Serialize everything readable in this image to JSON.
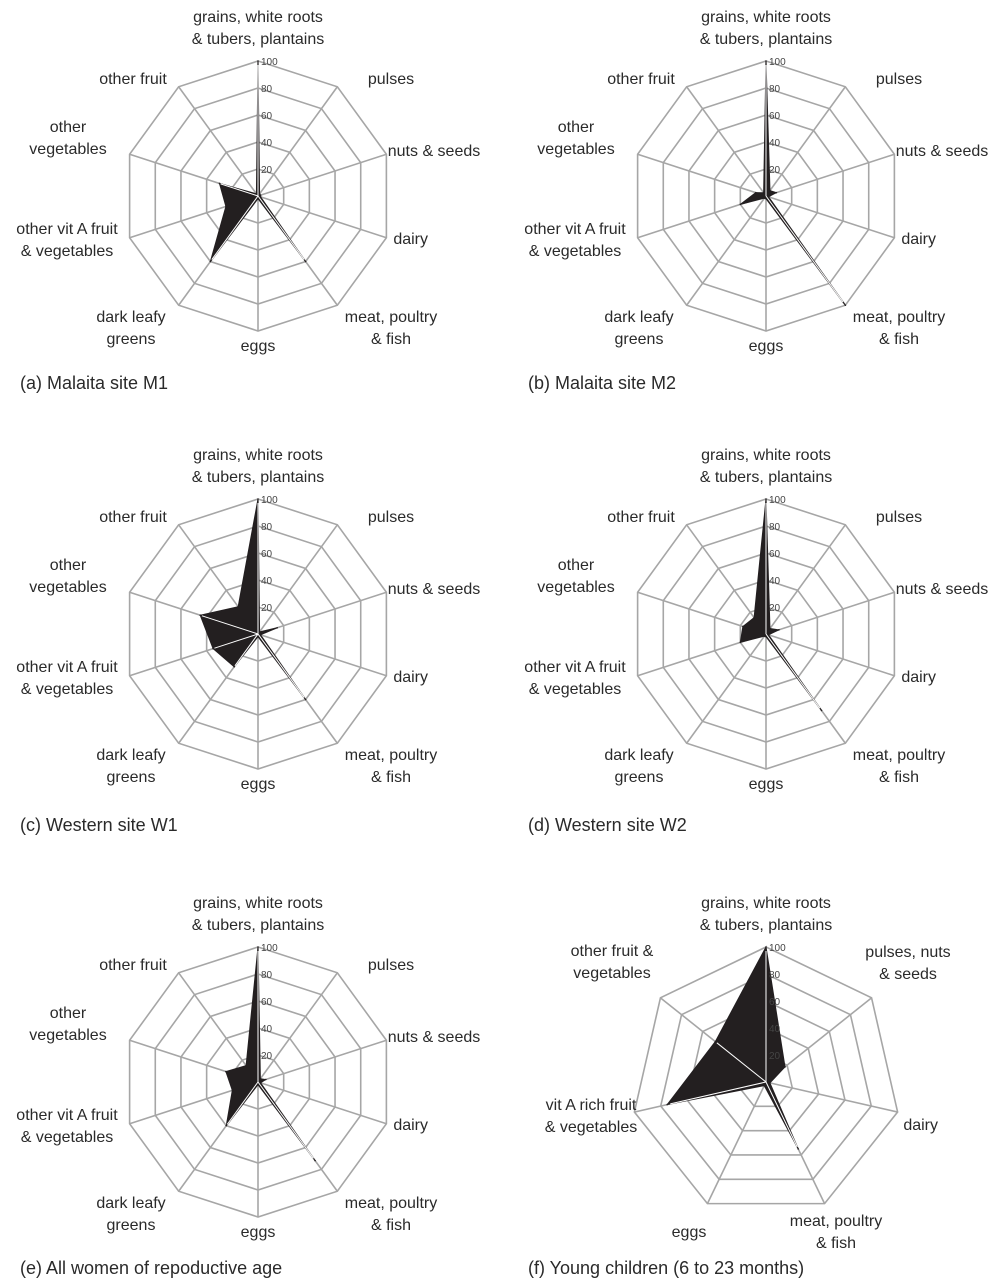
{
  "chart_data": [
    {
      "type": "radar",
      "caption": "(a) Malaita site M1",
      "categories": [
        "grains, white roots & tubers, plantains",
        "pulses",
        "nuts & seeds",
        "dairy",
        "meat, poultry & fish",
        "eggs",
        "dark leafy greens",
        "other vit A fruit & vegetables",
        "other vegetables",
        "other fruit"
      ],
      "values": [
        100,
        2,
        2,
        2,
        60,
        2,
        60,
        25,
        30,
        2
      ],
      "rlim": [
        0,
        100
      ],
      "rticks": [
        "20",
        "40",
        "60",
        "80",
        "100"
      ]
    },
    {
      "type": "radar",
      "caption": "(b) Malaita site M2",
      "categories": [
        "grains, white roots & tubers, plantains",
        "pulses",
        "nuts & seeds",
        "dairy",
        "meat, poultry & fish",
        "eggs",
        "dark leafy greens",
        "other vit A fruit & vegetables",
        "other vegetables",
        "other fruit"
      ],
      "values": [
        100,
        5,
        8,
        2,
        100,
        2,
        2,
        20,
        8,
        3
      ],
      "rlim": [
        0,
        100
      ],
      "rticks": [
        "20",
        "40",
        "60",
        "80",
        "100"
      ]
    },
    {
      "type": "radar",
      "caption": "(c) Western site W1",
      "categories": [
        "grains, white roots & tubers, plantains",
        "pulses",
        "nuts & seeds",
        "dairy",
        "meat, poultry & fish",
        "eggs",
        "dark leafy greens",
        "other vit A fruit & vegetables",
        "other vegetables",
        "other fruit"
      ],
      "values": [
        100,
        2,
        15,
        2,
        60,
        2,
        30,
        35,
        45,
        25
      ],
      "rlim": [
        0,
        100
      ],
      "rticks": [
        "20",
        "40",
        "60",
        "80",
        "100"
      ]
    },
    {
      "type": "radar",
      "caption": "(d) Western site W2",
      "categories": [
        "grains, white roots & tubers, plantains",
        "pulses",
        "nuts & seeds",
        "dairy",
        "meat, poultry & fish",
        "eggs",
        "dark leafy greens",
        "other vit A fruit & vegetables",
        "other vegetables",
        "other fruit"
      ],
      "values": [
        100,
        5,
        10,
        2,
        70,
        2,
        2,
        20,
        18,
        15
      ],
      "rlim": [
        0,
        100
      ],
      "rticks": [
        "20",
        "40",
        "60",
        "80",
        "100"
      ]
    },
    {
      "type": "radar",
      "caption": "(e) All women of repoductive age",
      "categories": [
        "grains, white roots & tubers, plantains",
        "pulses",
        "nuts & seeds",
        "dairy",
        "meat, poultry & fish",
        "eggs",
        "dark leafy greens",
        "other vit A fruit & vegetables",
        "other vegetables",
        "other fruit"
      ],
      "values": [
        100,
        3,
        6,
        2,
        72,
        2,
        40,
        20,
        25,
        15
      ],
      "rlim": [
        0,
        100
      ],
      "rticks": [
        "20",
        "40",
        "60",
        "80",
        "100"
      ]
    },
    {
      "type": "radar",
      "caption": "(f) Young children (6 to 23 months)",
      "categories": [
        "grains, white roots & tubers, plantains",
        "pulses, nuts & seeds",
        "dairy",
        "meat, poultry & fish",
        "eggs",
        "vit A rich fruit & vegetables",
        "other fruit & vegetables"
      ],
      "values": [
        100,
        18,
        3,
        55,
        3,
        75,
        48
      ],
      "rlim": [
        0,
        100
      ],
      "rticks": [
        "20",
        "40",
        "60",
        "80",
        "100"
      ]
    }
  ]
}
